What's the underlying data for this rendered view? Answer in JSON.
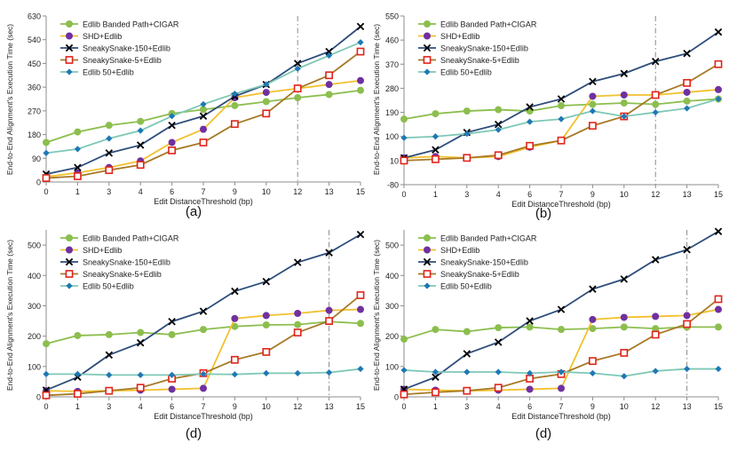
{
  "figure": {
    "x_categories": [
      "0",
      "1",
      "3",
      "4",
      "6",
      "7",
      "9",
      "10",
      "12",
      "13",
      "15"
    ],
    "xlabel": "Edit DistanceThreshold (bp)",
    "ylabel": "End-to-End Alignment's Execution Time (sec)",
    "series_styles": [
      {
        "name": "Edlib Banded Path+CIGAR",
        "color": "#8cbe4e",
        "marker": "circle"
      },
      {
        "name": "SHD+Edlib",
        "color": "#f2c12e",
        "marker": "circle",
        "marker_color": "#7030a0"
      },
      {
        "name": "SneakySnake-150+Edlib",
        "color": "#2e4d7b",
        "marker": "x",
        "marker_color": "#000000"
      },
      {
        "name": "SneakySnake-5+Edlib",
        "color": "#a77926",
        "marker": "square",
        "marker_color": "#e0251b"
      },
      {
        "name": "Edlib 50+Edlib",
        "color": "#7ec8b6",
        "marker": "diamond",
        "marker_color": "#1f78b4"
      }
    ],
    "threshold_line_color": "#8a8a8a"
  },
  "chart_data": [
    {
      "type": "line",
      "panel_label": "(a)",
      "categories": [
        "0",
        "1",
        "3",
        "4",
        "6",
        "7",
        "9",
        "10",
        "12",
        "13",
        "15"
      ],
      "ylim": [
        0,
        630
      ],
      "yticks": [
        0,
        90,
        180,
        270,
        360,
        450,
        540,
        630
      ],
      "xlabel": "Edit DistanceThreshold (bp)",
      "ylabel": "End-to-End Alignment's Execution Time (sec)",
      "threshold_at": "12",
      "series": [
        {
          "name": "Edlib Banded Path+CIGAR",
          "values": [
            150,
            190,
            215,
            230,
            260,
            275,
            290,
            305,
            320,
            332,
            348
          ]
        },
        {
          "name": "SHD+Edlib",
          "values": [
            20,
            35,
            55,
            80,
            150,
            200,
            320,
            340,
            355,
            370,
            385
          ]
        },
        {
          "name": "SneakySnake-150+Edlib",
          "values": [
            30,
            55,
            110,
            140,
            215,
            250,
            325,
            370,
            450,
            495,
            590
          ]
        },
        {
          "name": "SneakySnake-5+Edlib",
          "values": [
            15,
            22,
            45,
            65,
            120,
            150,
            220,
            260,
            355,
            405,
            495
          ]
        },
        {
          "name": "Edlib 50+Edlib",
          "values": [
            110,
            125,
            165,
            195,
            250,
            295,
            335,
            370,
            430,
            480,
            530
          ]
        }
      ]
    },
    {
      "type": "line",
      "panel_label": "(b)",
      "categories": [
        "0",
        "1",
        "3",
        "4",
        "6",
        "7",
        "9",
        "10",
        "12",
        "13",
        "15"
      ],
      "ylim": [
        -80,
        550
      ],
      "yticks": [
        -80,
        10,
        100,
        190,
        280,
        370,
        460,
        550
      ],
      "xlabel": "Edit DistanceThreshold (bp)",
      "ylabel": "End-to-End Alignment's Execution Time (sec)",
      "threshold_at": "12",
      "series": [
        {
          "name": "Edlib Banded Path+CIGAR",
          "values": [
            165,
            185,
            195,
            200,
            195,
            215,
            220,
            225,
            220,
            232,
            240
          ]
        },
        {
          "name": "SHD+Edlib",
          "values": [
            20,
            25,
            20,
            25,
            60,
            85,
            250,
            255,
            255,
            265,
            275
          ]
        },
        {
          "name": "SneakySnake-150+Edlib",
          "values": [
            20,
            50,
            115,
            145,
            210,
            240,
            305,
            335,
            380,
            410,
            490
          ]
        },
        {
          "name": "SneakySnake-5+Edlib",
          "values": [
            10,
            15,
            20,
            30,
            65,
            85,
            140,
            175,
            255,
            300,
            370
          ]
        },
        {
          "name": "Edlib 50+Edlib",
          "values": [
            95,
            100,
            110,
            125,
            155,
            165,
            195,
            175,
            190,
            205,
            240
          ]
        }
      ]
    },
    {
      "type": "line",
      "panel_label": "(d)",
      "categories": [
        "0",
        "1",
        "3",
        "4",
        "6",
        "7",
        "9",
        "10",
        "12",
        "13",
        "15"
      ],
      "ylim": [
        0,
        550
      ],
      "yticks": [
        0,
        100,
        200,
        300,
        400,
        500
      ],
      "xlabel": "Edit DistanceThreshold (bp)",
      "ylabel": "End-to-End Alignment's Execution Time (sec)",
      "threshold_at": "13",
      "series": [
        {
          "name": "Edlib Banded Path+CIGAR",
          "values": [
            175,
            202,
            205,
            212,
            205,
            222,
            232,
            237,
            238,
            248,
            242
          ]
        },
        {
          "name": "SHD+Edlib",
          "values": [
            20,
            18,
            20,
            22,
            25,
            28,
            258,
            268,
            275,
            285,
            288
          ]
        },
        {
          "name": "SneakySnake-150+Edlib",
          "values": [
            22,
            65,
            138,
            178,
            248,
            282,
            348,
            380,
            443,
            475,
            535
          ]
        },
        {
          "name": "SneakySnake-5+Edlib",
          "values": [
            5,
            10,
            20,
            30,
            60,
            78,
            122,
            148,
            212,
            250,
            335
          ]
        },
        {
          "name": "Edlib 50+Edlib",
          "values": [
            75,
            75,
            72,
            72,
            72,
            75,
            74,
            78,
            78,
            80,
            92
          ]
        }
      ]
    },
    {
      "type": "line",
      "panel_label": "(d)",
      "categories": [
        "0",
        "1",
        "3",
        "4",
        "6",
        "7",
        "9",
        "10",
        "12",
        "13",
        "15"
      ],
      "ylim": [
        0,
        550
      ],
      "yticks": [
        0,
        100,
        200,
        300,
        400,
        500
      ],
      "xlabel": "Edit DistanceThreshold (bp)",
      "ylabel": "End-to-End Alignment's Execution Time (sec)",
      "threshold_at": "13",
      "series": [
        {
          "name": "Edlib Banded Path+CIGAR",
          "values": [
            190,
            222,
            215,
            228,
            230,
            222,
            225,
            230,
            225,
            230,
            230
          ]
        },
        {
          "name": "SHD+Edlib",
          "values": [
            25,
            22,
            20,
            22,
            25,
            28,
            255,
            262,
            265,
            268,
            288
          ]
        },
        {
          "name": "SneakySnake-150+Edlib",
          "values": [
            25,
            65,
            142,
            180,
            250,
            288,
            355,
            388,
            452,
            485,
            545
          ]
        },
        {
          "name": "SneakySnake-5+Edlib",
          "values": [
            8,
            15,
            20,
            30,
            60,
            75,
            118,
            145,
            205,
            240,
            322
          ]
        },
        {
          "name": "Edlib 50+Edlib",
          "values": [
            88,
            82,
            82,
            82,
            78,
            82,
            78,
            68,
            85,
            92,
            92
          ]
        }
      ]
    }
  ]
}
